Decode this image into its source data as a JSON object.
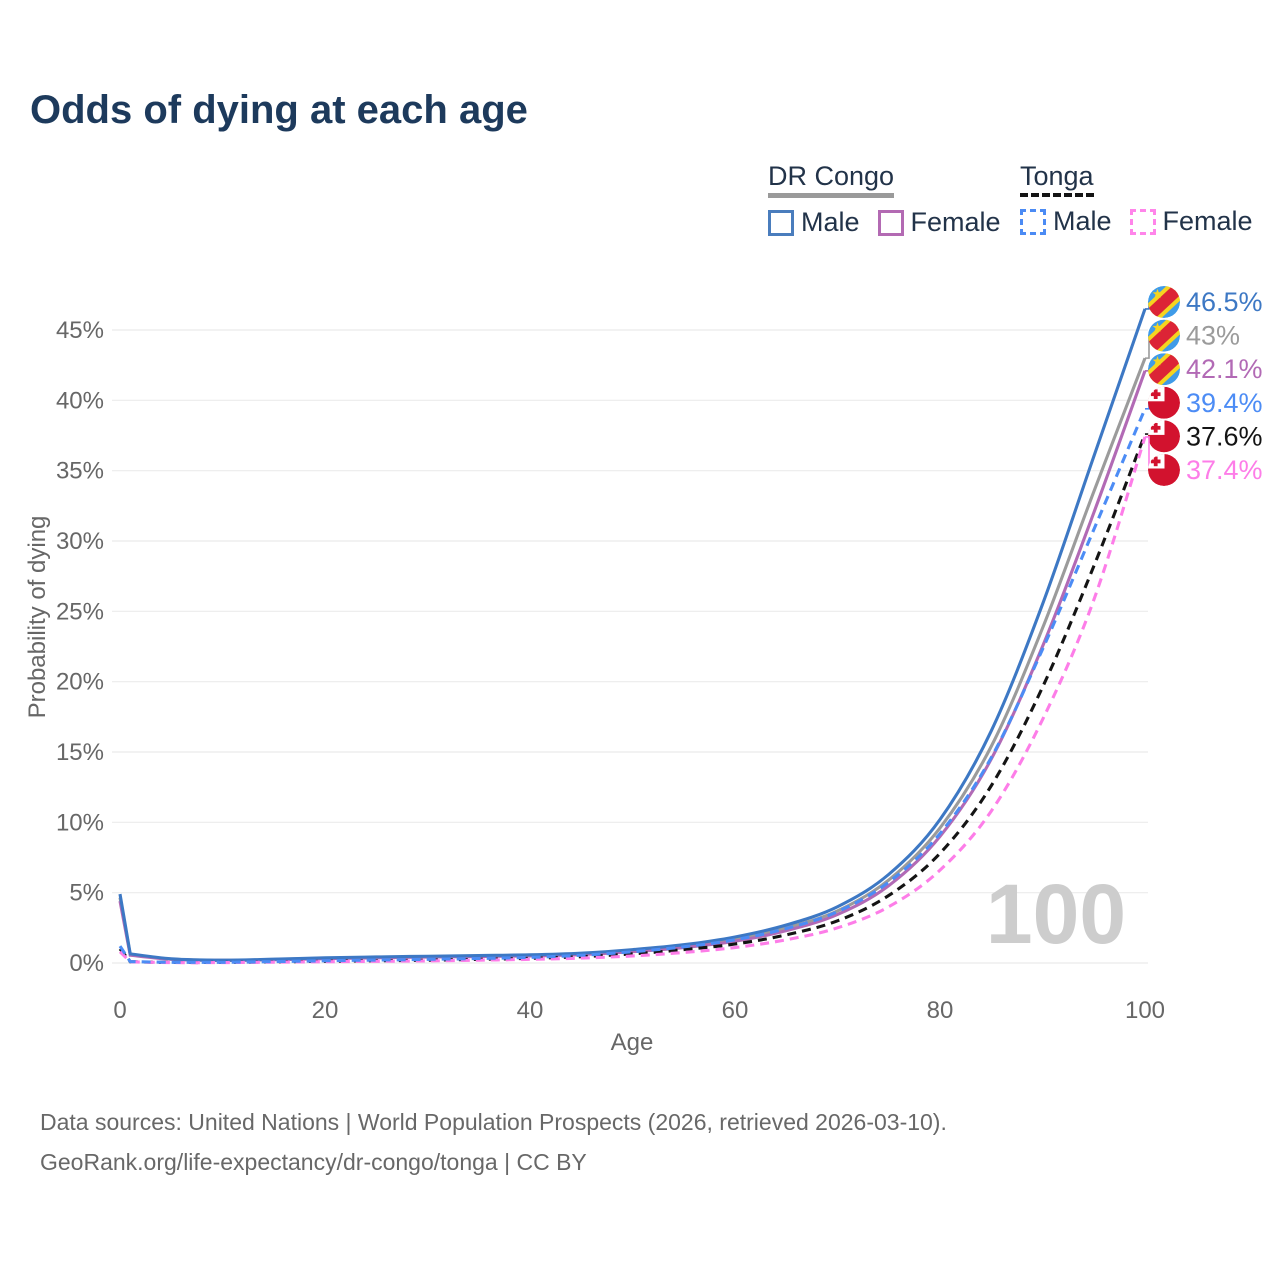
{
  "title": "Odds of dying at each age",
  "legend": {
    "groups": [
      {
        "name": "DR Congo",
        "line_color": "#9a9a9a",
        "line_style": "solid",
        "items": [
          {
            "label": "Male",
            "color": "#4a7dbd",
            "dashed": false
          },
          {
            "label": "Female",
            "color": "#b36ab3",
            "dashed": false
          }
        ]
      },
      {
        "name": "Tonga",
        "line_color": "#141414",
        "line_style": "dashed",
        "items": [
          {
            "label": "Male",
            "color": "#4b8bf4",
            "dashed": true
          },
          {
            "label": "Female",
            "color": "#ff85ea",
            "dashed": true
          }
        ]
      }
    ]
  },
  "chart_data": {
    "type": "line",
    "title": "Odds of dying at each age",
    "xlabel": "Age",
    "ylabel": "Probability of dying",
    "xlim": [
      0,
      100
    ],
    "ylim": [
      0,
      47.5
    ],
    "x_ticks": [
      0,
      20,
      40,
      60,
      80,
      100
    ],
    "y_ticks": [
      0,
      5,
      10,
      15,
      20,
      25,
      30,
      35,
      40,
      45
    ],
    "y_tick_suffix": "%",
    "grid": "horizontal",
    "legend_position": "top-right",
    "watermark": "100",
    "x": [
      0,
      1,
      5,
      10,
      15,
      20,
      25,
      30,
      35,
      40,
      45,
      50,
      55,
      60,
      65,
      70,
      75,
      80,
      85,
      90,
      95,
      100
    ],
    "series": [
      {
        "name": "DR Congo Male",
        "color": "#3d78c4",
        "dashed": false,
        "flag": "dr-congo",
        "end_label": "46.5%",
        "values": [
          4.9,
          0.65,
          0.3,
          0.2,
          0.27,
          0.37,
          0.43,
          0.48,
          0.53,
          0.58,
          0.7,
          0.95,
          1.3,
          1.85,
          2.7,
          4.0,
          6.3,
          10.2,
          16.5,
          25.5,
          36.0,
          46.5
        ]
      },
      {
        "name": "DR Congo Both sexes",
        "color": "#9b9b9b",
        "dashed": false,
        "flag": "dr-congo",
        "end_label": "43%",
        "values": [
          4.65,
          0.6,
          0.28,
          0.19,
          0.25,
          0.34,
          0.4,
          0.45,
          0.49,
          0.54,
          0.65,
          0.88,
          1.2,
          1.7,
          2.5,
          3.7,
          5.9,
          9.6,
          15.4,
          23.8,
          33.5,
          43.0
        ]
      },
      {
        "name": "DR Congo Female",
        "color": "#b26ab5",
        "dashed": false,
        "flag": "dr-congo",
        "end_label": "42.1%",
        "values": [
          4.4,
          0.55,
          0.26,
          0.18,
          0.23,
          0.31,
          0.37,
          0.42,
          0.46,
          0.5,
          0.6,
          0.8,
          1.1,
          1.55,
          2.3,
          3.45,
          5.5,
          9.0,
          14.5,
          22.5,
          32.0,
          42.1
        ]
      },
      {
        "name": "Tonga Male",
        "color": "#4c8cf5",
        "dashed": true,
        "flag": "tonga",
        "end_label": "39.4%",
        "values": [
          1.2,
          0.1,
          0.05,
          0.05,
          0.1,
          0.16,
          0.21,
          0.26,
          0.32,
          0.4,
          0.55,
          0.8,
          1.15,
          1.65,
          2.45,
          3.65,
          5.75,
          9.2,
          14.6,
          22.3,
          30.8,
          39.4
        ]
      },
      {
        "name": "Tonga Both sexes",
        "color": "#141414",
        "dashed": true,
        "flag": "tonga",
        "end_label": "37.6%",
        "values": [
          1.0,
          0.09,
          0.04,
          0.04,
          0.08,
          0.12,
          0.16,
          0.2,
          0.26,
          0.33,
          0.45,
          0.65,
          0.95,
          1.35,
          2.0,
          3.0,
          4.8,
          7.8,
          12.6,
          19.6,
          28.2,
          37.6
        ]
      },
      {
        "name": "Tonga Female",
        "color": "#fd7de8",
        "dashed": true,
        "flag": "tonga",
        "end_label": "37.4%",
        "values": [
          0.8,
          0.08,
          0.03,
          0.03,
          0.06,
          0.09,
          0.12,
          0.15,
          0.2,
          0.26,
          0.35,
          0.5,
          0.75,
          1.1,
          1.65,
          2.5,
          4.0,
          6.6,
          10.8,
          17.3,
          25.8,
          37.4
        ]
      }
    ],
    "flag_colors": {
      "dr-congo": {
        "field": "#3f9be8",
        "stripe": "#dc2436",
        "accent": "#f5d420"
      },
      "tonga": {
        "field": "#d2122e",
        "canton": "#ffffff",
        "cross": "#d2122e"
      }
    }
  },
  "footer": {
    "line1": "Data sources: United Nations | World Population Prospects (2026, retrieved 2026-03-10).",
    "line2": "GeoRank.org/life-expectancy/dr-congo/tonga | CC BY"
  },
  "colors": {
    "title": "#1d3a5c",
    "axis_text": "#676767",
    "grid": "#ebebeb",
    "watermark": "#cdcdcd",
    "legend_text": "#223349"
  }
}
